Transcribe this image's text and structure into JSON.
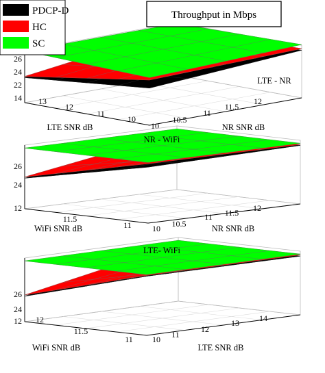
{
  "figure_title": "Throughput in Mbps",
  "legend": [
    {
      "label": "PDCP-D",
      "color": "#000000"
    },
    {
      "label": "HC",
      "color": "#ff0000"
    },
    {
      "label": "SC",
      "color": "#00ff00"
    }
  ],
  "colors": {
    "PDCP-D": "#000000",
    "HC": "#ff0000",
    "SC": "#00ff00"
  },
  "chart_data": [
    {
      "type": "surface",
      "title": "LTE - NR",
      "xlabel": "LTE SNR dB",
      "ylabel": "NR SNR dB",
      "x_ticks": [
        "13",
        "12",
        "11",
        "10"
      ],
      "y_ticks": [
        "10",
        "10.5",
        "11",
        "11.5",
        "12"
      ],
      "z_ticks": [
        "14",
        "22",
        "24",
        "26"
      ],
      "zlim": [
        14,
        27
      ],
      "series": [
        {
          "name": "SC",
          "corners": {
            "x_min_y_min": 26.8,
            "x_max_y_min": 25.8,
            "x_min_y_max": 26.8,
            "x_max_y_max": 27.2
          }
        },
        {
          "name": "HC",
          "corners": {
            "x_min_y_min": 20.5,
            "x_max_y_min": 25.2,
            "x_min_y_max": 25.5,
            "x_max_y_max": 26.2
          }
        },
        {
          "name": "PDCP-D",
          "corners": {
            "x_min_y_min": 20.2,
            "x_max_y_min": 23.2,
            "x_min_y_max": 25.0,
            "x_max_y_max": 25.8
          }
        }
      ]
    },
    {
      "type": "surface",
      "title": "NR - WiFi",
      "xlabel": "WiFi SNR dB",
      "ylabel": "NR SNR dB",
      "x_ticks": [
        "11.5",
        "11"
      ],
      "y_ticks": [
        "10",
        "10.5",
        "11",
        "11.5",
        "12"
      ],
      "z_ticks": [
        "12",
        "24",
        "26"
      ],
      "zlim": [
        12,
        27
      ],
      "series": [
        {
          "name": "SC",
          "corners": {
            "x_min_y_min": 26.3,
            "x_max_y_min": 26.3,
            "x_min_y_max": 26.3,
            "x_max_y_max": 26.3
          }
        },
        {
          "name": "HC",
          "corners": {
            "x_min_y_min": 19.5,
            "x_max_y_min": 26.0,
            "x_min_y_max": 25.3,
            "x_max_y_max": 26.0
          }
        },
        {
          "name": "PDCP-D",
          "corners": {
            "x_min_y_min": 19.2,
            "x_max_y_min": 25.2,
            "x_min_y_max": 25.0,
            "x_max_y_max": 25.8
          }
        }
      ]
    },
    {
      "type": "surface",
      "title": "LTE- WiFi",
      "xlabel": "WiFi SNR dB",
      "ylabel": "LTE SNR dB",
      "x_ticks": [
        "12",
        "11.5",
        "11"
      ],
      "y_ticks": [
        "10",
        "11",
        "12",
        "13",
        "14"
      ],
      "z_ticks": [
        "12",
        "24",
        "26"
      ],
      "zlim": [
        12,
        27.5
      ],
      "series": [
        {
          "name": "SC",
          "corners": {
            "x_min_y_min": 26.8,
            "x_max_y_min": 26.8,
            "x_min_y_max": 26.8,
            "x_max_y_max": 26.8
          }
        },
        {
          "name": "HC",
          "corners": {
            "x_min_y_min": 18.5,
            "x_max_y_min": 26.6,
            "x_min_y_max": 25.8,
            "x_max_y_max": 26.6
          }
        },
        {
          "name": "PDCP-D",
          "corners": {
            "x_min_y_min": 18.2,
            "x_max_y_min": 26.4,
            "x_min_y_max": 25.6,
            "x_max_y_max": 26.3
          }
        }
      ]
    }
  ]
}
